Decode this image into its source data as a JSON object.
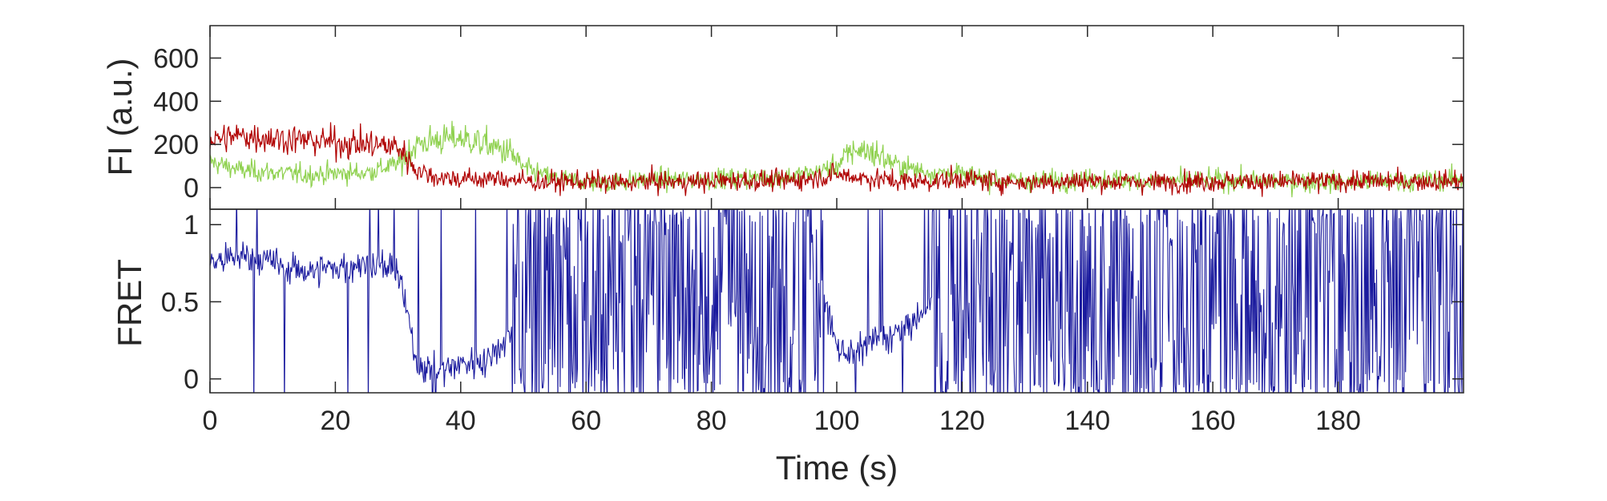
{
  "chart_data": [
    {
      "type": "line",
      "panel": "top",
      "ylabel": "FI (a.u.)",
      "xlim": [
        0,
        200
      ],
      "ylim": [
        -100,
        750
      ],
      "yticks": [
        0,
        200,
        400,
        600
      ],
      "ytick_labels": [
        "0",
        "200",
        "400",
        "600"
      ],
      "grid": false,
      "legend": "none",
      "series": [
        {
          "color": "#8fd14f",
          "sampled_points": [
            [
              0,
              120
            ],
            [
              5,
              80
            ],
            [
              10,
              70
            ],
            [
              15,
              60
            ],
            [
              20,
              65
            ],
            [
              25,
              70
            ],
            [
              30,
              110
            ],
            [
              33,
              200
            ],
            [
              36,
              220
            ],
            [
              40,
              230
            ],
            [
              44,
              200
            ],
            [
              48,
              160
            ],
            [
              50,
              90
            ],
            [
              55,
              40
            ],
            [
              60,
              30
            ],
            [
              65,
              25
            ],
            [
              70,
              40
            ],
            [
              75,
              35
            ],
            [
              80,
              40
            ],
            [
              85,
              45
            ],
            [
              90,
              45
            ],
            [
              95,
              60
            ],
            [
              100,
              100
            ],
            [
              103,
              180
            ],
            [
              106,
              160
            ],
            [
              110,
              100
            ],
            [
              115,
              70
            ],
            [
              120,
              60
            ],
            [
              125,
              40
            ],
            [
              130,
              30
            ],
            [
              140,
              40
            ],
            [
              150,
              30
            ],
            [
              160,
              35
            ],
            [
              170,
              30
            ],
            [
              180,
              25
            ],
            [
              190,
              30
            ],
            [
              200,
              40
            ]
          ]
        },
        {
          "color": "#b00000",
          "sampled_points": [
            [
              0,
              220
            ],
            [
              5,
              240
            ],
            [
              10,
              230
            ],
            [
              15,
              220
            ],
            [
              20,
              210
            ],
            [
              25,
              200
            ],
            [
              30,
              190
            ],
            [
              33,
              80
            ],
            [
              36,
              50
            ],
            [
              40,
              40
            ],
            [
              44,
              40
            ],
            [
              48,
              40
            ],
            [
              50,
              30
            ],
            [
              55,
              25
            ],
            [
              60,
              30
            ],
            [
              65,
              20
            ],
            [
              70,
              30
            ],
            [
              75,
              25
            ],
            [
              80,
              30
            ],
            [
              85,
              35
            ],
            [
              90,
              30
            ],
            [
              95,
              40
            ],
            [
              100,
              60
            ],
            [
              103,
              50
            ],
            [
              106,
              40
            ],
            [
              110,
              30
            ],
            [
              115,
              30
            ],
            [
              120,
              40
            ],
            [
              125,
              30
            ],
            [
              130,
              25
            ],
            [
              140,
              30
            ],
            [
              150,
              25
            ],
            [
              160,
              30
            ],
            [
              170,
              25
            ],
            [
              180,
              30
            ],
            [
              190,
              30
            ],
            [
              200,
              30
            ]
          ]
        }
      ]
    },
    {
      "type": "line",
      "panel": "bottom",
      "ylabel": "FRET",
      "xlabel": "Time (s)",
      "xlim": [
        0,
        200
      ],
      "ylim": [
        -0.09,
        1.1
      ],
      "yticks": [
        0,
        0.5,
        1
      ],
      "ytick_labels": [
        "0",
        "0.5",
        "1"
      ],
      "xticks": [
        0,
        20,
        40,
        60,
        80,
        100,
        120,
        140,
        160,
        180
      ],
      "xtick_labels": [
        "0",
        "20",
        "40",
        "60",
        "80",
        "100",
        "120",
        "140",
        "160",
        "180"
      ],
      "grid": false,
      "legend": "none",
      "series": [
        {
          "color": "#1a1a9e",
          "sampled_points": [
            [
              0,
              0.75
            ],
            [
              5,
              0.8
            ],
            [
              10,
              0.75
            ],
            [
              15,
              0.7
            ],
            [
              20,
              0.72
            ],
            [
              25,
              0.75
            ],
            [
              30,
              0.7
            ],
            [
              33,
              0.1
            ],
            [
              36,
              0.05
            ],
            [
              40,
              0.1
            ],
            [
              44,
              0.12
            ],
            [
              48,
              0.3
            ],
            [
              50,
              0.6
            ],
            [
              60,
              0.55
            ],
            [
              70,
              0.55
            ],
            [
              80,
              0.55
            ],
            [
              90,
              0.55
            ],
            [
              98,
              0.55
            ],
            [
              100,
              0.2
            ],
            [
              103,
              0.15
            ],
            [
              106,
              0.25
            ],
            [
              110,
              0.3
            ],
            [
              115,
              0.45
            ],
            [
              120,
              0.5
            ],
            [
              130,
              0.55
            ],
            [
              140,
              0.55
            ],
            [
              150,
              0.55
            ],
            [
              160,
              0.5
            ],
            [
              170,
              0.55
            ],
            [
              180,
              0.55
            ],
            [
              190,
              0.5
            ],
            [
              200,
              0.55
            ]
          ]
        }
      ]
    }
  ]
}
